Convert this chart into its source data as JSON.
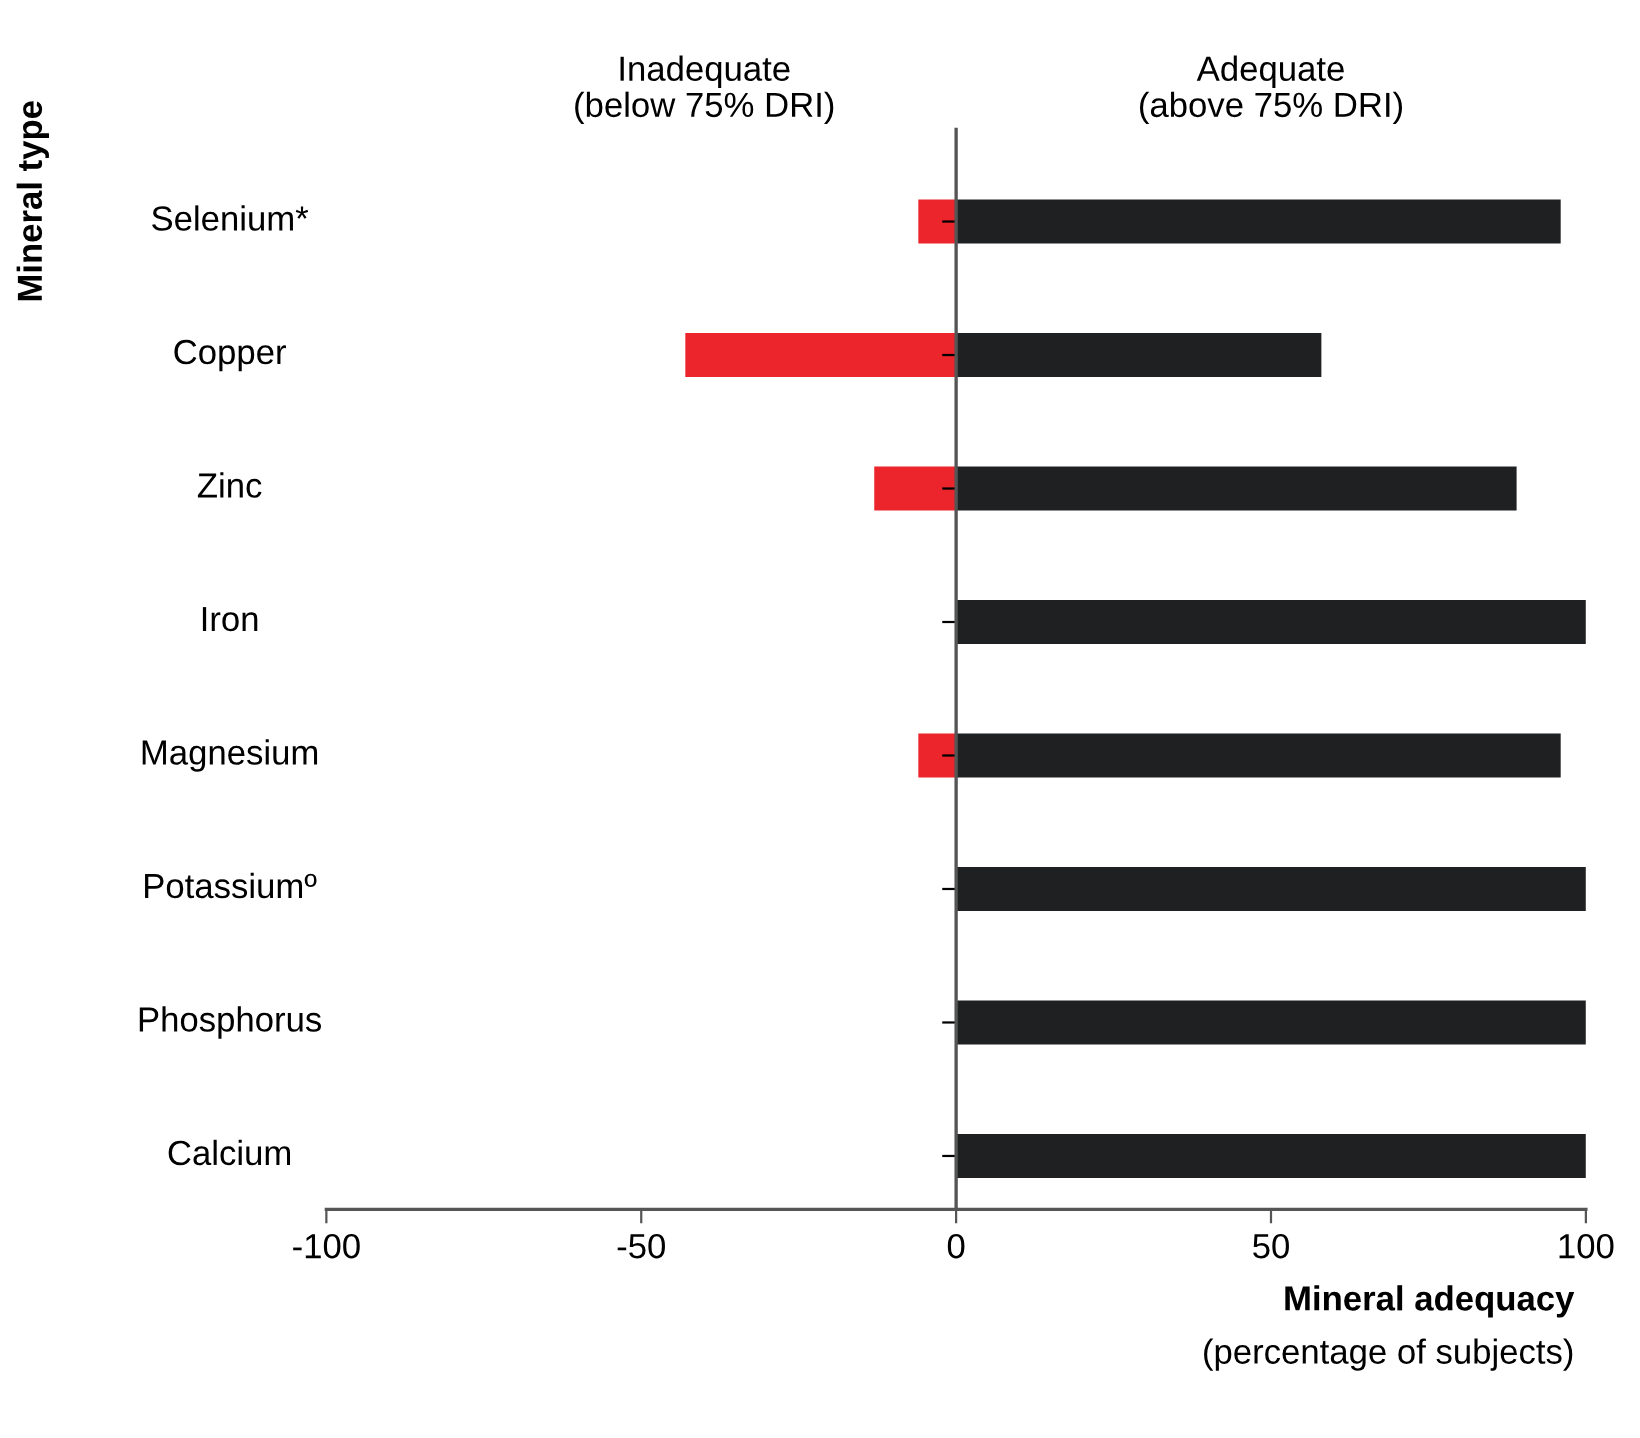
{
  "chart_data": {
    "type": "bar",
    "orientation": "horizontal",
    "stacked": true,
    "categories": [
      "Selenium*",
      "Copper",
      "Zinc",
      "Iron",
      "Magnesium",
      "Potassiumº",
      "Phosphorus",
      "Calcium"
    ],
    "series": [
      {
        "color": "#ec242b",
        "values": [
          -6,
          -43,
          -13,
          null,
          -6,
          null,
          null,
          null
        ]
      },
      {
        "color": "#1f2022",
        "values": [
          96,
          58,
          89,
          100,
          96,
          100,
          100,
          100
        ]
      }
    ],
    "xlim": [
      -100,
      100
    ],
    "xticks": [
      -100,
      -50,
      0,
      50,
      100
    ],
    "xlabel": "Mineral adequacy",
    "ylabel": "Mineral type",
    "annotations": [
      "Inadequate\n(below 75% DRI)",
      "Adequate\n(above 75% DRI)",
      "(percentage of subjects)"
    ],
    "legend": false
  }
}
